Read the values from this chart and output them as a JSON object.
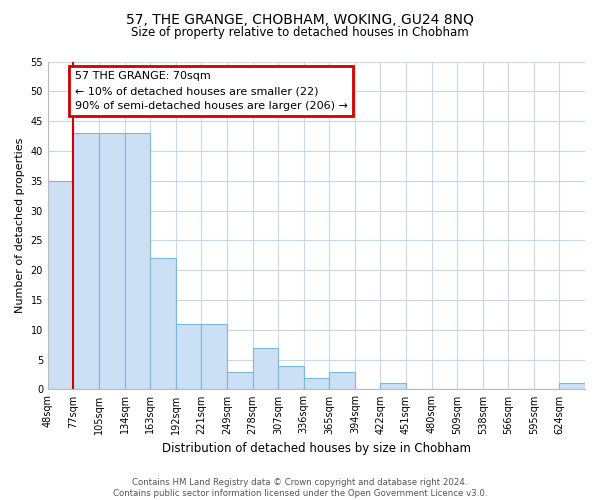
{
  "title": "57, THE GRANGE, CHOBHAM, WOKING, GU24 8NQ",
  "subtitle": "Size of property relative to detached houses in Chobham",
  "xlabel": "Distribution of detached houses by size in Chobham",
  "ylabel": "Number of detached properties",
  "bar_labels": [
    "48sqm",
    "77sqm",
    "105sqm",
    "134sqm",
    "163sqm",
    "192sqm",
    "221sqm",
    "249sqm",
    "278sqm",
    "307sqm",
    "336sqm",
    "365sqm",
    "394sqm",
    "422sqm",
    "451sqm",
    "480sqm",
    "509sqm",
    "538sqm",
    "566sqm",
    "595sqm",
    "624sqm"
  ],
  "bar_values": [
    35,
    43,
    43,
    43,
    22,
    11,
    11,
    3,
    7,
    4,
    2,
    3,
    0,
    1,
    0,
    0,
    0,
    0,
    0,
    0,
    1
  ],
  "ylim": [
    0,
    55
  ],
  "yticks": [
    0,
    5,
    10,
    15,
    20,
    25,
    30,
    35,
    40,
    45,
    50,
    55
  ],
  "bar_color": "#cce0f5",
  "bar_edge_color": "#7ab8d8",
  "annotation_box_text_line1": "57 THE GRANGE: 70sqm",
  "annotation_box_text_line2": "← 10% of detached houses are smaller (22)",
  "annotation_box_text_line3": "90% of semi-detached houses are larger (206) →",
  "footer_line1": "Contains HM Land Registry data © Crown copyright and database right 2024.",
  "footer_line2": "Contains public sector information licensed under the Open Government Licence v3.0.",
  "red_line_color": "#cc0000",
  "background_color": "#ffffff",
  "grid_color": "#c8d8e8",
  "red_line_x": 1
}
